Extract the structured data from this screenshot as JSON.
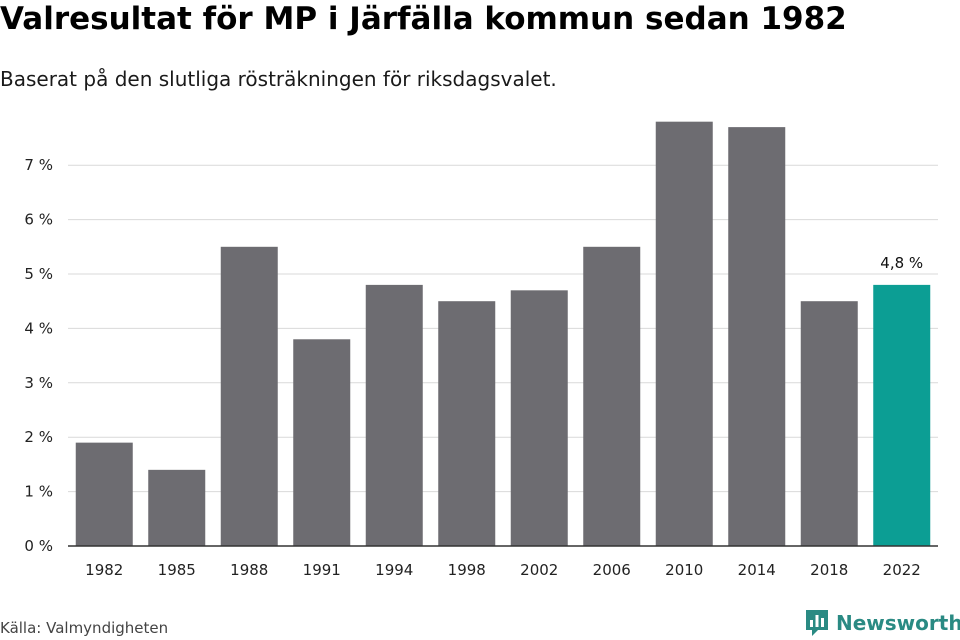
{
  "header": {
    "title": "Valresultat för MP i Järfälla kommun sedan 1982",
    "subtitle": "Baserat på den slutliga rösträkningen för riksdagsvalet."
  },
  "footer": {
    "source": "Källa: Valmyndigheten",
    "brand": "Newsworthy",
    "brand_icon": "newsworthy-logo-icon"
  },
  "colors": {
    "bar": "#6d6c71",
    "highlight": "#0c9e94",
    "grid": "#d9d9d9",
    "axis": "#333333",
    "brand": "#2a8a83"
  },
  "chart_data": {
    "type": "bar",
    "categories": [
      "1982",
      "1985",
      "1988",
      "1991",
      "1994",
      "1998",
      "2002",
      "2006",
      "2010",
      "2014",
      "2018",
      "2022"
    ],
    "values": [
      1.9,
      1.4,
      5.5,
      3.8,
      4.8,
      4.5,
      4.7,
      5.5,
      7.8,
      7.7,
      4.5,
      4.8
    ],
    "highlight_index": 11,
    "data_labels": [
      {
        "index": 11,
        "text": "4,8 %"
      }
    ],
    "yticks": [
      "0 %",
      "1 %",
      "2 %",
      "3 %",
      "4 %",
      "5 %",
      "6 %",
      "7 %"
    ],
    "ylim": [
      0,
      8
    ],
    "grid": true,
    "legend": "none"
  }
}
